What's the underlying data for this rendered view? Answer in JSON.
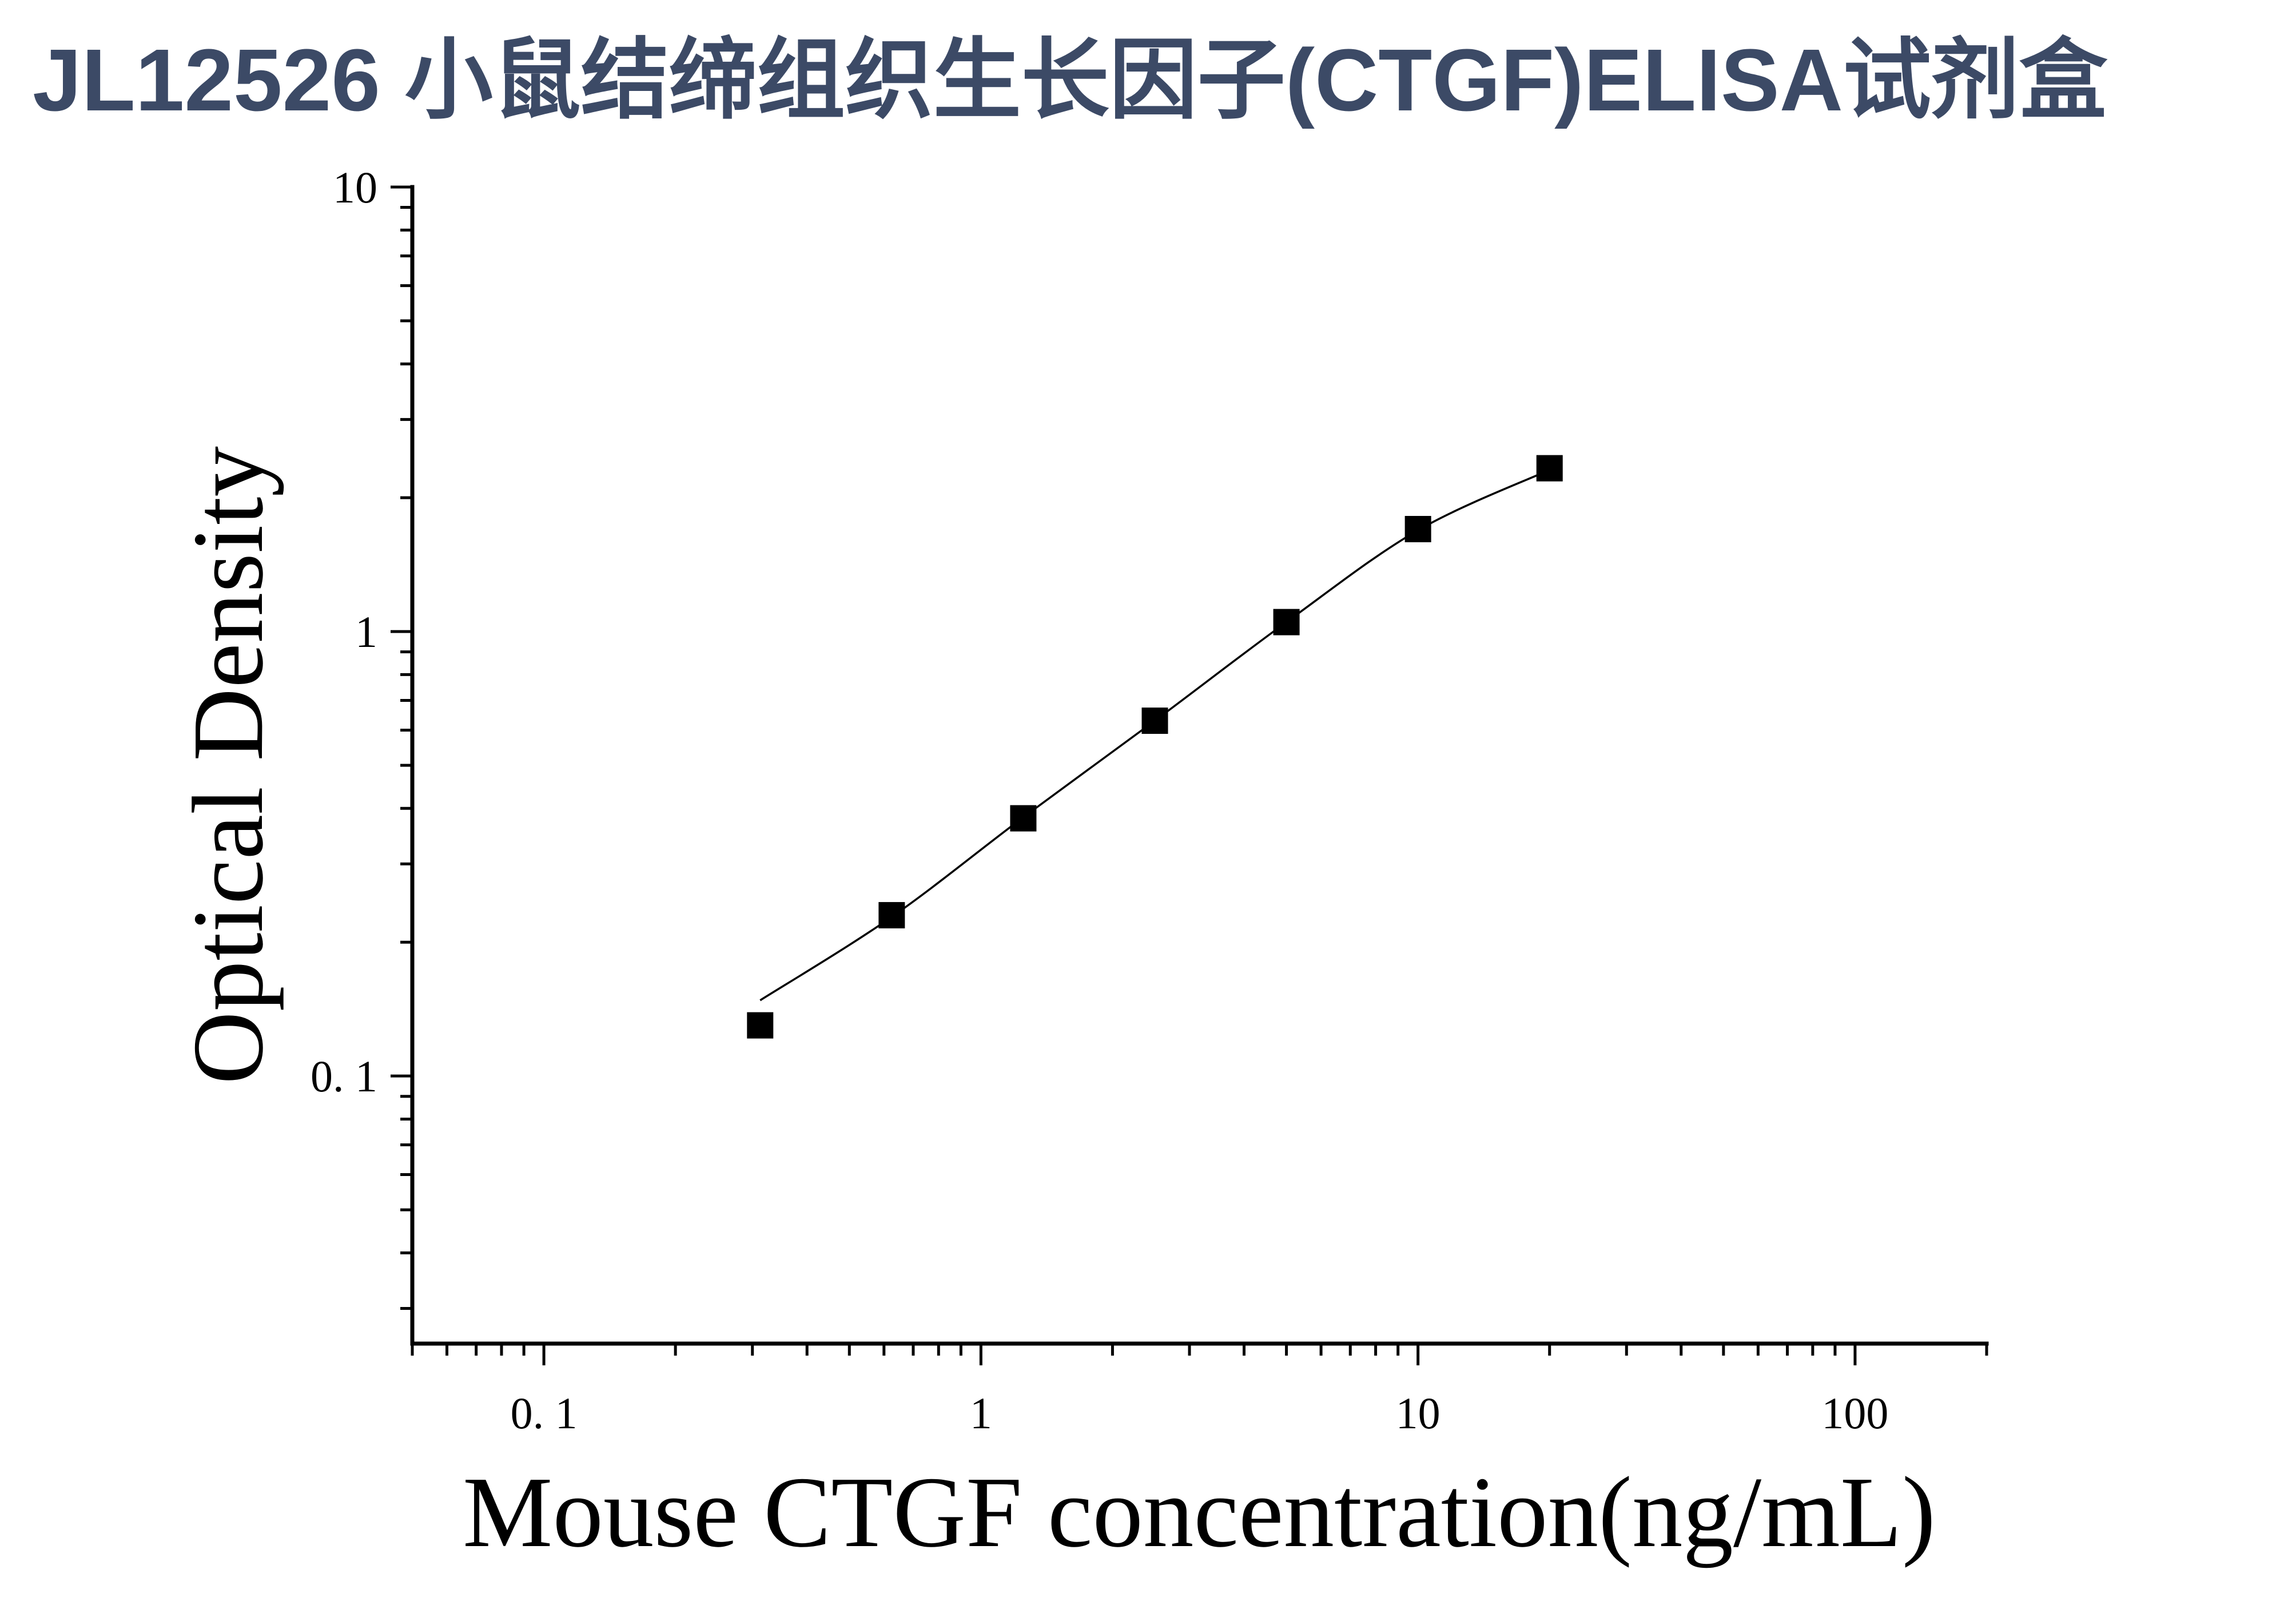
{
  "colors": {
    "title": "#3c4a66",
    "ink": "#000000",
    "background": "#ffffff"
  },
  "chart_data": {
    "type": "scatter",
    "title": "JL12526 小鼠结缔组织生长因子(CTGF)ELISA试剂盒",
    "xlabel": "Mouse CTGF concentration(ng/mL)",
    "ylabel": "Optical Density",
    "xscale": "log",
    "yscale": "log",
    "xlim": [
      0.05,
      200
    ],
    "ylim": [
      0.025,
      10
    ],
    "xticks": [
      {
        "value": 0.1,
        "label": "0. 1"
      },
      {
        "value": 1,
        "label": "1"
      },
      {
        "value": 10,
        "label": "10"
      },
      {
        "value": 100,
        "label": "100"
      }
    ],
    "yticks": [
      {
        "value": 0.1,
        "label": "0. 1"
      },
      {
        "value": 1,
        "label": "1"
      },
      {
        "value": 10,
        "label": "10"
      }
    ],
    "minor_ticks": true,
    "grid": false,
    "series": [
      {
        "type": "scatter",
        "marker": "square",
        "x": [
          0.3125,
          0.625,
          1.25,
          2.5,
          5,
          10,
          20
        ],
        "y": [
          0.13,
          0.23,
          0.38,
          0.63,
          1.05,
          1.7,
          2.33
        ]
      },
      {
        "type": "line",
        "x": [
          0.3125,
          0.625,
          1.25,
          2.5,
          5,
          10,
          20
        ],
        "y": [
          0.148,
          0.228,
          0.382,
          0.63,
          1.05,
          1.69,
          2.31
        ]
      }
    ]
  }
}
